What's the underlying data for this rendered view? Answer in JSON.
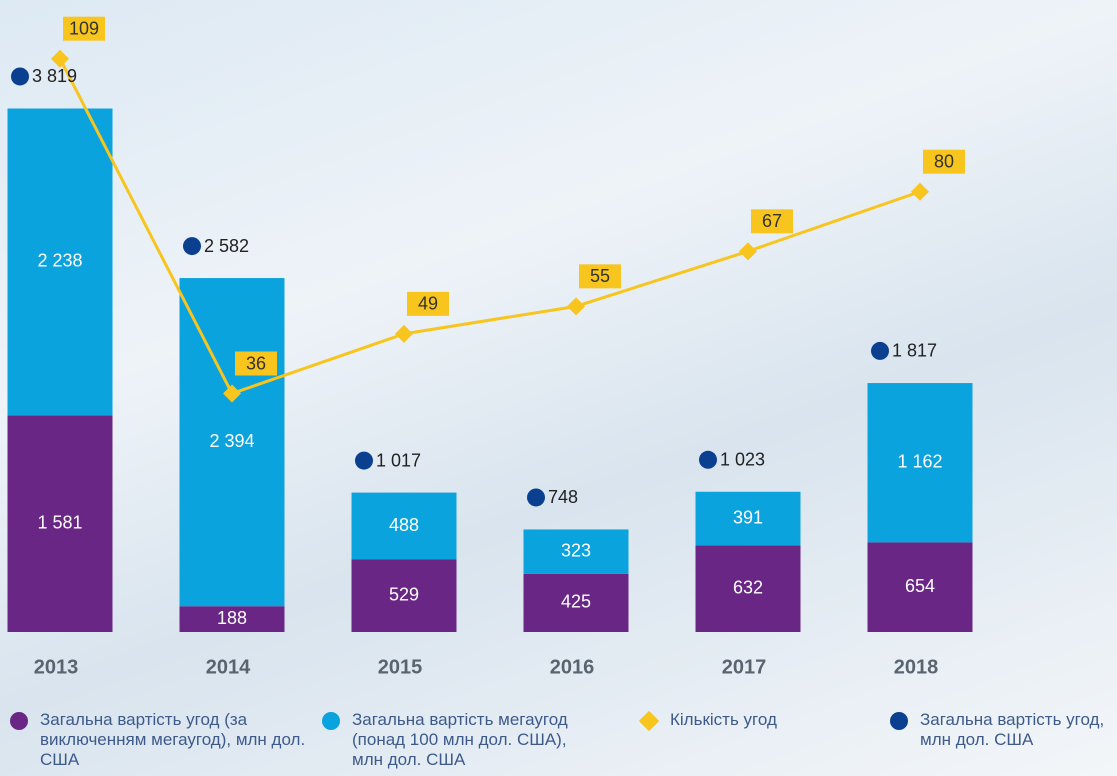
{
  "chart_data": {
    "type": "bar",
    "categories": [
      "2013",
      "2014",
      "2015",
      "2016",
      "2017",
      "2018"
    ],
    "ylim": [
      0,
      4450
    ],
    "y2lim": [
      -16,
      117
    ],
    "series": [
      {
        "name": "Загальна вартість угод (за виключенням мегаугод), млн дол. США",
        "type": "bar",
        "color": "#6a2685",
        "values": [
          1581,
          188,
          529,
          425,
          632,
          654
        ],
        "value_labels": [
          "1 581",
          "188",
          "529",
          "425",
          "632",
          "654"
        ]
      },
      {
        "name": "Загальна вартість мегаугод (понад 100 млн дол. США), млн дол. США",
        "type": "bar",
        "color": "#0ba3dd",
        "values": [
          2238,
          2394,
          488,
          323,
          391,
          1162
        ],
        "value_labels": [
          "2 238",
          "2 394",
          "488",
          "323",
          "391",
          "1 162"
        ]
      },
      {
        "name": "Кількість угод",
        "type": "line",
        "axis": "y2",
        "color": "#f7c51e",
        "values": [
          109,
          36,
          49,
          55,
          67,
          80
        ]
      },
      {
        "name": "Загальна вартість угод, млн дол. США",
        "type": "total",
        "color": "#0b3f8f",
        "values": [
          3819,
          2582,
          1017,
          748,
          1023,
          1817
        ],
        "value_labels": [
          "3 819",
          "2 582",
          "1 017",
          "748",
          "1 023",
          "1 817"
        ]
      }
    ]
  }
}
